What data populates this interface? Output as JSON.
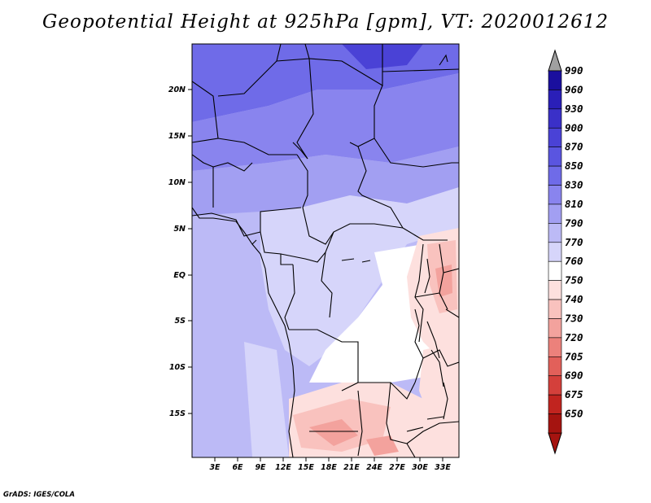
{
  "title": "Geopotential Height at 925hPa [gpm], VT: 2020012612",
  "credit": "GrADS: IGES/COLA",
  "y_ticks": [
    "20N",
    "15N",
    "10N",
    "5N",
    "EQ",
    "5S",
    "10S",
    "15S"
  ],
  "x_ticks": [
    "3E",
    "6E",
    "9E",
    "12E",
    "15E",
    "18E",
    "21E",
    "24E",
    "27E",
    "30E",
    "33E"
  ],
  "colorbar": {
    "labels": [
      "990",
      "960",
      "930",
      "900",
      "870",
      "850",
      "830",
      "810",
      "790",
      "770",
      "760",
      "750",
      "740",
      "730",
      "720",
      "705",
      "690",
      "675",
      "650"
    ],
    "colors": [
      "#1a0f9e",
      "#2a1fb8",
      "#3a30c8",
      "#4a42d6",
      "#5a55e0",
      "#6f6be8",
      "#8984ee",
      "#a29ff2",
      "#bcbaf6",
      "#d6d5fa",
      "#ffffff",
      "#fde0de",
      "#f9c2be",
      "#f3a29d",
      "#ec817b",
      "#e2605a",
      "#d4403b",
      "#c1241f",
      "#a51410"
    ]
  },
  "icons": {
    "over_arrow": "triangle-up-gray",
    "under_arrow": "triangle-down-red"
  }
}
